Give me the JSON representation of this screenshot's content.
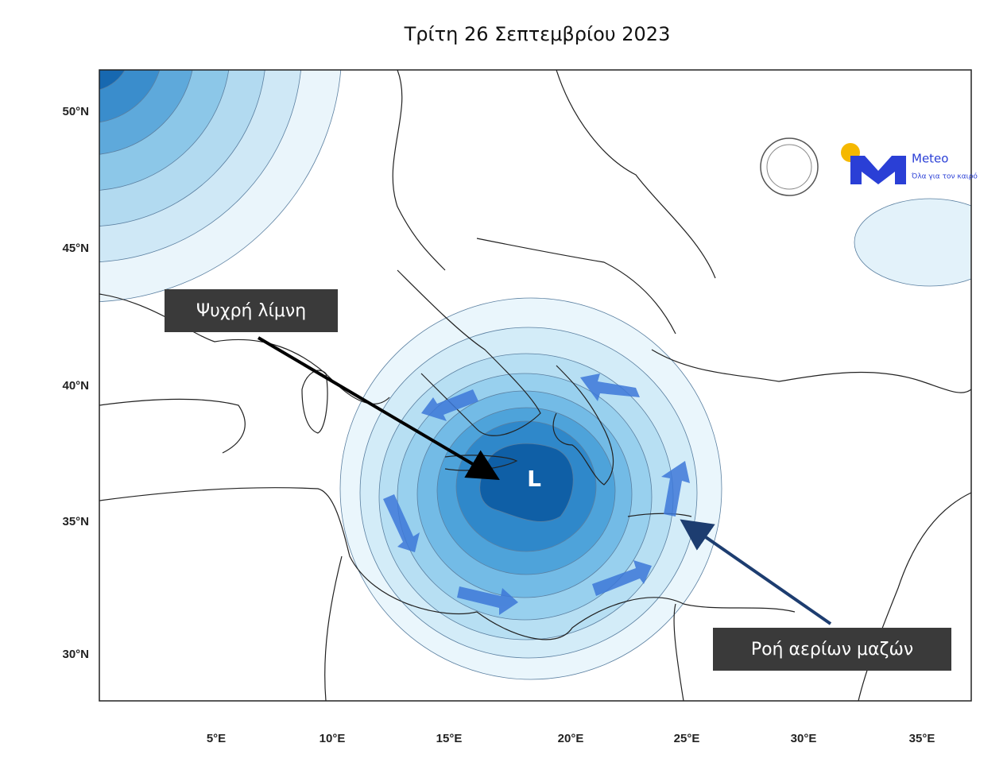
{
  "title": "Τρίτη 26 Σεπτεμβρίου 2023",
  "lat_labels": [
    "50°N",
    "45°N",
    "40°N",
    "35°N",
    "30°N"
  ],
  "lon_labels": [
    "5°E",
    "10°E",
    "15°E",
    "20°E",
    "25°E",
    "30°E",
    "35°E"
  ],
  "low_label": "L",
  "annotations": [
    "Ψυχρή λίμνη",
    "Ροή αερίων μαζών"
  ],
  "logo": {
    "name": "Meteo",
    "tagline": "Όλα για τον καιρό"
  }
}
